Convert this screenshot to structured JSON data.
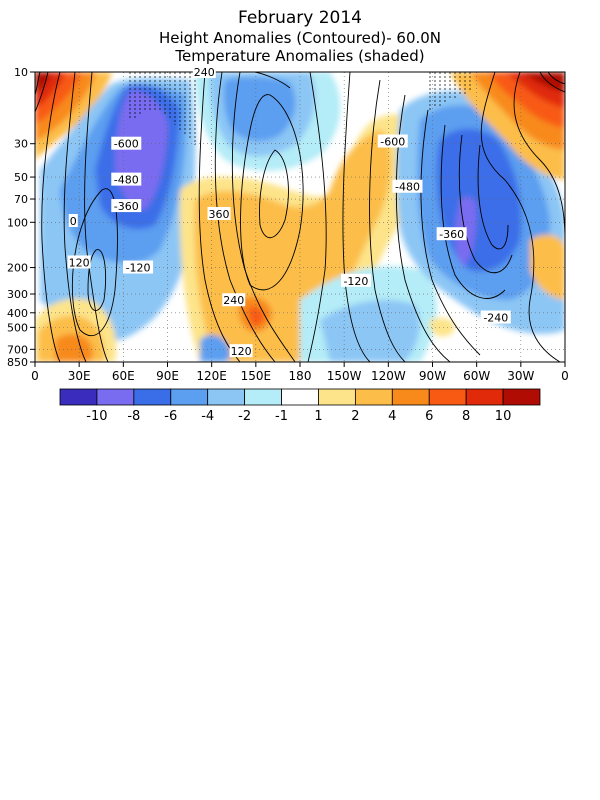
{
  "chart_data": {
    "type": "heatmap",
    "title": "February 2014",
    "subtitle_1": "Height Anomalies (Contoured)- 60.0N",
    "subtitle_2": "Temperature Anomalies (shaded)",
    "x_ticks": [
      "0",
      "30E",
      "60E",
      "90E",
      "120E",
      "150E",
      "180",
      "150W",
      "120W",
      "90W",
      "60W",
      "30W",
      "0"
    ],
    "y_ticks": [
      "10",
      "30",
      "50",
      "70",
      "100",
      "200",
      "300",
      "400",
      "500",
      "700",
      "850"
    ],
    "y_scale": "log-pressure",
    "x_range": [
      "0",
      "0"
    ],
    "y_range": [
      10,
      850
    ],
    "grid": "dotted",
    "colorbar": {
      "labels": [
        "-10",
        "-8",
        "-6",
        "-4",
        "-2",
        "-1",
        "1",
        "2",
        "4",
        "6",
        "8",
        "10"
      ],
      "colors": [
        "#3a2dbd",
        "#7a6cf0",
        "#3a6ee8",
        "#5c9ef0",
        "#8cc6f5",
        "#b4ecf7",
        "#ffffff",
        "#fde48a",
        "#fcbe48",
        "#f88a1c",
        "#f85a14",
        "#e02a0a",
        "#b00c04"
      ]
    },
    "contour_labels": [
      {
        "text": "240",
        "lon": 115,
        "p": 10
      },
      {
        "text": "-600",
        "lon": 62,
        "p": 30
      },
      {
        "text": "-480",
        "lon": 62,
        "p": 52
      },
      {
        "text": "-360",
        "lon": 62,
        "p": 78
      },
      {
        "text": "0",
        "lon": 26,
        "p": 98
      },
      {
        "text": "360",
        "lon": 125,
        "p": 88
      },
      {
        "text": "120",
        "lon": 30,
        "p": 185
      },
      {
        "text": "-120",
        "lon": 70,
        "p": 200
      },
      {
        "text": "240",
        "lon": 135,
        "p": 330
      },
      {
        "text": "120",
        "lon": 140,
        "p": 720
      },
      {
        "text": "-600",
        "lon": 243,
        "p": 29
      },
      {
        "text": "-480",
        "lon": 253,
        "p": 58
      },
      {
        "text": "-360",
        "lon": 283,
        "p": 120
      },
      {
        "text": "-120",
        "lon": 218,
        "p": 245
      },
      {
        "text": "-240",
        "lon": 313,
        "p": 430
      }
    ]
  }
}
